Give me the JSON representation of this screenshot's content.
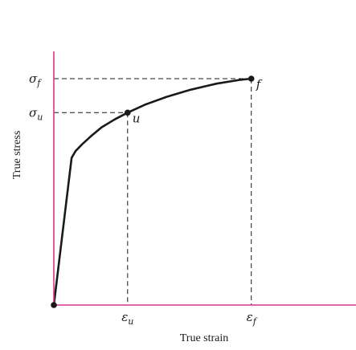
{
  "chart_data": {
    "type": "line",
    "xlabel": "True strain",
    "ylabel": "True stress",
    "x_ticks": [
      {
        "symbol": "ε",
        "sub": "u",
        "value": 0.34
      },
      {
        "symbol": "ε",
        "sub": "f",
        "value": 0.91
      }
    ],
    "y_ticks": [
      {
        "symbol": "σ",
        "sub": "u",
        "value": 0.85
      },
      {
        "symbol": "σ",
        "sub": "f",
        "value": 1.0
      }
    ],
    "points": [
      {
        "label": "u",
        "x": 0.34,
        "y": 0.85
      },
      {
        "label": "f",
        "x": 0.91,
        "y": 1.0
      }
    ],
    "series": [
      {
        "x": [
          0,
          0.082,
          0.1,
          0.13,
          0.17,
          0.22,
          0.28,
          0.34,
          0.42,
          0.52,
          0.63,
          0.75,
          0.86,
          0.91
        ],
        "y": [
          0,
          0.65,
          0.68,
          0.71,
          0.745,
          0.785,
          0.82,
          0.85,
          0.885,
          0.92,
          0.951,
          0.978,
          0.995,
          1.0
        ]
      }
    ],
    "xlim": [
      0,
      1.41
    ],
    "ylim": [
      0,
      1.12
    ],
    "grid": false,
    "line_color": "#1a1a1a",
    "axis_color": "#d8338c"
  }
}
